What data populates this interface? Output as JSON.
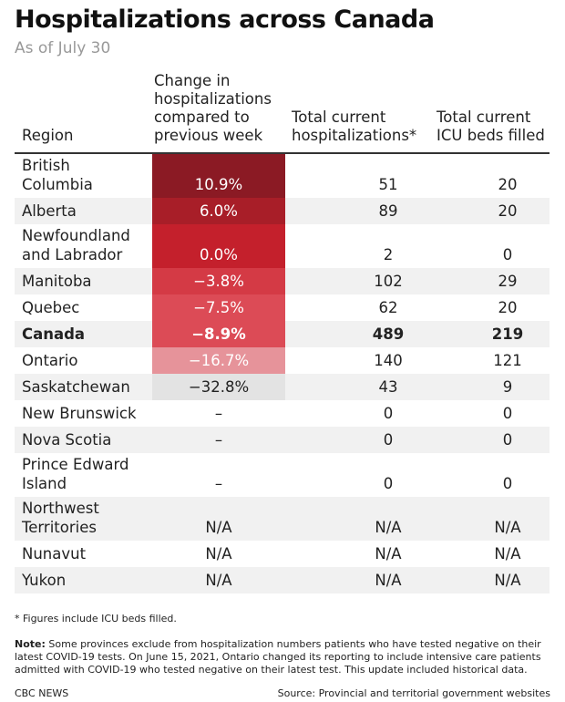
{
  "title": "Hospitalizations across Canada",
  "subtitle": "As of July 30",
  "columns": {
    "region": [
      "Region"
    ],
    "change": [
      "Change in",
      "hospitalizations",
      "compared to",
      "previous week"
    ],
    "total": [
      "Total current",
      "hospitalizations*"
    ],
    "icu": [
      "Total current",
      "ICU beds filled"
    ]
  },
  "rows": [
    {
      "region": [
        "British",
        "Columbia"
      ],
      "change": "10.9%",
      "change_value": 10.9,
      "total": "51",
      "icu": "20",
      "shade": false,
      "bold": false
    },
    {
      "region": [
        "Alberta"
      ],
      "change": "6.0%",
      "change_value": 6.0,
      "total": "89",
      "icu": "20",
      "shade": true,
      "bold": false
    },
    {
      "region": [
        "Newfoundland",
        "and Labrador"
      ],
      "change": "0.0%",
      "change_value": 0.0,
      "total": "2",
      "icu": "0",
      "shade": false,
      "bold": false
    },
    {
      "region": [
        "Manitoba"
      ],
      "change": "−3.8%",
      "change_value": -3.8,
      "total": "102",
      "icu": "29",
      "shade": true,
      "bold": false
    },
    {
      "region": [
        "Quebec"
      ],
      "change": "−7.5%",
      "change_value": -7.5,
      "total": "62",
      "icu": "20",
      "shade": false,
      "bold": false
    },
    {
      "region": [
        "Canada"
      ],
      "change": "−8.9%",
      "change_value": -8.9,
      "total": "489",
      "icu": "219",
      "shade": true,
      "bold": true
    },
    {
      "region": [
        "Ontario"
      ],
      "change": "−16.7%",
      "change_value": -16.7,
      "total": "140",
      "icu": "121",
      "shade": false,
      "bold": false
    },
    {
      "region": [
        "Saskatchewan"
      ],
      "change": "−32.8%",
      "change_value": -32.8,
      "total": "43",
      "icu": "9",
      "shade": true,
      "bold": false
    },
    {
      "region": [
        "New Brunswick"
      ],
      "change": "–",
      "change_value": null,
      "total": "0",
      "icu": "0",
      "shade": false,
      "bold": false
    },
    {
      "region": [
        "Nova Scotia"
      ],
      "change": "–",
      "change_value": null,
      "total": "0",
      "icu": "0",
      "shade": true,
      "bold": false
    },
    {
      "region": [
        "Prince Edward",
        "Island"
      ],
      "change": "–",
      "change_value": null,
      "total": "0",
      "icu": "0",
      "shade": false,
      "bold": false
    },
    {
      "region": [
        "Northwest",
        "Territories"
      ],
      "change": "N/A",
      "change_value": null,
      "total": "N/A",
      "icu": "N/A",
      "shade": true,
      "bold": false
    },
    {
      "region": [
        "Nunavut"
      ],
      "change": "N/A",
      "change_value": null,
      "total": "N/A",
      "icu": "N/A",
      "shade": false,
      "bold": false
    },
    {
      "region": [
        "Yukon"
      ],
      "change": "N/A",
      "change_value": null,
      "total": "N/A",
      "icu": "N/A",
      "shade": true,
      "bold": false
    }
  ],
  "heat_colors": {
    "darkest": "#8b1a24",
    "dark": "#a81e28",
    "mid": "#c4202c",
    "light": "#d43a45",
    "lighter": "#dc4b56",
    "pale": "#e6939a",
    "neutral": "#e3e3e3"
  },
  "footnote": "* Figures include ICU beds filled.",
  "note_label": "Note:",
  "note_text": " Some provinces exclude from hospitalization numbers patients who have tested negative on their latest COVID-19 tests. On June 15, 2021, Ontario changed its reporting to include intensive care patients admitted with COVID-19 who tested negative on their latest test. This update included historical data.",
  "credit": "CBC NEWS",
  "source": "Source: Provincial and territorial government websites"
}
